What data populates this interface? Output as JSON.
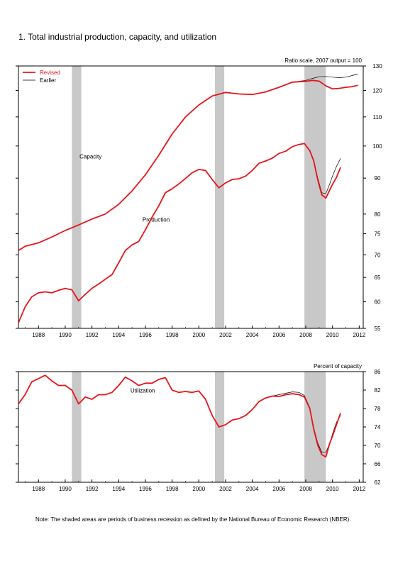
{
  "title": "1. Total industrial production, capacity, and utilization",
  "note": "Note: The shaded areas are periods of business recession as defined by the National Bureau of Economic Research (NBER).",
  "colors": {
    "revised": "#e8141a",
    "earlier": "#000000",
    "recession": "#c8c8c8"
  },
  "chart_data": [
    {
      "type": "line",
      "title": "",
      "xlabel": "",
      "ylabel": "",
      "unit_label": "Ratio scale, 2007 output = 100",
      "y_scale": "log",
      "xlim": [
        1986.5,
        2012.3
      ],
      "ylim": [
        55,
        130
      ],
      "x_ticks": [
        1988,
        1990,
        1992,
        1994,
        1996,
        1998,
        2000,
        2002,
        2004,
        2006,
        2008,
        2010,
        2012
      ],
      "x_tick_labels": [
        "1988",
        "1990",
        "1992",
        "1994",
        "1996",
        "1998",
        "2000",
        "2002",
        "2004",
        "2006",
        "2008",
        "2010",
        "2012"
      ],
      "y_ticks": [
        55,
        60,
        65,
        70,
        75,
        80,
        90,
        100,
        110,
        120,
        130
      ],
      "y_tick_labels": [
        "55",
        "60",
        "65",
        "70",
        "75",
        "80",
        "90",
        "100",
        "110",
        "120",
        "130"
      ],
      "legend": {
        "placement": "top-left",
        "entries": [
          "Revised",
          "Earlier"
        ]
      },
      "recessions": [
        [
          1990.5,
          1991.2
        ],
        [
          2001.2,
          2001.9
        ],
        [
          2007.9,
          2009.5
        ]
      ],
      "annotations": [
        {
          "text": "Capacity",
          "x": 1991.9,
          "y": 96
        },
        {
          "text": "Production",
          "x": 1996.8,
          "y": 78
        }
      ],
      "series": [
        {
          "name": "Capacity (Revised)",
          "style": "revised",
          "x": [
            1986.5,
            1987.0,
            1988.0,
            1989.0,
            1990.0,
            1991.0,
            1992.0,
            1993.0,
            1994.0,
            1995.0,
            1996.0,
            1997.0,
            1998.0,
            1999.0,
            2000.0,
            2001.0,
            2002.0,
            2003.0,
            2004.0,
            2005.0,
            2006.0,
            2007.0,
            2008.0,
            2008.5,
            2009.0,
            2009.5,
            2010.0,
            2010.5,
            2011.0,
            2011.5,
            2011.9
          ],
          "values": [
            71.0,
            72.0,
            72.8,
            74.2,
            75.8,
            77.2,
            78.7,
            80.0,
            82.6,
            86.3,
            91.0,
            97.0,
            104.0,
            110.0,
            114.4,
            117.8,
            119.2,
            118.6,
            118.4,
            119.4,
            121.2,
            123.3,
            123.6,
            124.0,
            123.7,
            121.8,
            120.6,
            120.8,
            121.2,
            121.5,
            122.0
          ]
        },
        {
          "name": "Capacity (Earlier)",
          "style": "earlier",
          "x": [
            2007.0,
            2008.0,
            2008.5,
            2009.0,
            2009.5,
            2010.0,
            2010.5,
            2011.0,
            2011.5,
            2011.9
          ],
          "values": [
            123.3,
            124.0,
            124.8,
            125.5,
            125.6,
            125.3,
            125.1,
            125.3,
            126.0,
            126.6
          ]
        },
        {
          "name": "Production (Revised)",
          "style": "revised",
          "x": [
            1986.5,
            1987.0,
            1987.5,
            1988.0,
            1988.5,
            1989.0,
            1989.5,
            1990.0,
            1990.5,
            1991.0,
            1991.5,
            1992.0,
            1992.5,
            1993.0,
            1993.5,
            1994.0,
            1994.5,
            1995.0,
            1995.5,
            1996.0,
            1996.5,
            1997.0,
            1997.5,
            1998.0,
            1998.5,
            1999.0,
            1999.5,
            2000.0,
            2000.5,
            2001.0,
            2001.5,
            2002.0,
            2002.5,
            2003.0,
            2003.5,
            2004.0,
            2004.5,
            2005.0,
            2005.5,
            2006.0,
            2006.5,
            2007.0,
            2007.5,
            2007.9,
            2008.3,
            2008.6,
            2008.9,
            2009.2,
            2009.5,
            2009.8,
            2010.0,
            2010.3,
            2010.6
          ],
          "values": [
            56.0,
            59.0,
            61.0,
            61.8,
            62.0,
            61.8,
            62.3,
            62.7,
            62.4,
            60.2,
            61.5,
            62.7,
            63.6,
            64.6,
            65.6,
            68.2,
            71.0,
            72.3,
            73.1,
            76.0,
            79.2,
            82.2,
            85.8,
            86.9,
            88.3,
            89.9,
            91.6,
            92.6,
            92.3,
            89.6,
            87.2,
            88.6,
            89.6,
            89.8,
            90.6,
            92.3,
            94.5,
            95.2,
            96.1,
            97.6,
            98.3,
            99.8,
            100.5,
            100.8,
            98.5,
            95.2,
            89.4,
            85.2,
            84.3,
            86.6,
            88.2,
            90.2,
            93.2
          ]
        },
        {
          "name": "Production (Earlier)",
          "style": "earlier",
          "x": [
            2008.3,
            2008.6,
            2008.9,
            2009.2,
            2009.5,
            2009.8,
            2010.0,
            2010.3,
            2010.6
          ],
          "values": [
            98.5,
            95.4,
            90.0,
            85.8,
            85.5,
            88.4,
            90.6,
            93.5,
            96.0
          ]
        }
      ]
    },
    {
      "type": "line",
      "title": "",
      "xlabel": "",
      "ylabel": "",
      "unit_label": "Percent of capacity",
      "xlim": [
        1986.5,
        2012.3
      ],
      "ylim": [
        62,
        86
      ],
      "x_ticks": [
        1988,
        1990,
        1992,
        1994,
        1996,
        1998,
        2000,
        2002,
        2004,
        2006,
        2008,
        2010,
        2012
      ],
      "x_tick_labels": [
        "1988",
        "1990",
        "1992",
        "1994",
        "1996",
        "1998",
        "2000",
        "2002",
        "2004",
        "2006",
        "2008",
        "2010",
        "2012"
      ],
      "y_ticks": [
        62,
        66,
        70,
        74,
        78,
        82,
        86
      ],
      "y_tick_labels": [
        "62",
        "66",
        "70",
        "74",
        "78",
        "82",
        "86"
      ],
      "recessions": [
        [
          1990.5,
          1991.2
        ],
        [
          2001.2,
          2001.9
        ],
        [
          2007.9,
          2009.5
        ]
      ],
      "annotations": [
        {
          "text": "Utilization",
          "x": 1995.8,
          "y": 81.5
        }
      ],
      "series": [
        {
          "name": "Utilization (Revised)",
          "style": "revised",
          "x": [
            1986.5,
            1987.0,
            1987.5,
            1988.0,
            1988.5,
            1989.0,
            1989.5,
            1990.0,
            1990.5,
            1991.0,
            1991.5,
            1992.0,
            1992.5,
            1993.0,
            1993.5,
            1994.0,
            1994.5,
            1995.0,
            1995.5,
            1996.0,
            1996.5,
            1997.0,
            1997.5,
            1998.0,
            1998.5,
            1999.0,
            1999.5,
            2000.0,
            2000.5,
            2001.0,
            2001.5,
            2002.0,
            2002.5,
            2003.0,
            2003.5,
            2004.0,
            2004.5,
            2005.0,
            2005.5,
            2006.0,
            2006.5,
            2007.0,
            2007.5,
            2007.9,
            2008.3,
            2008.6,
            2008.9,
            2009.2,
            2009.5,
            2009.8,
            2010.0,
            2010.3,
            2010.6
          ],
          "values": [
            79.0,
            81.0,
            83.8,
            84.5,
            85.2,
            84.0,
            83.0,
            83.0,
            82.0,
            79.0,
            80.5,
            80.0,
            81.0,
            81.0,
            81.5,
            83.0,
            84.8,
            84.0,
            83.0,
            83.5,
            83.5,
            84.3,
            84.7,
            82.0,
            81.5,
            81.7,
            81.5,
            81.8,
            80.0,
            76.5,
            74.0,
            74.5,
            75.5,
            75.8,
            76.5,
            77.8,
            79.5,
            80.3,
            80.7,
            80.6,
            81.0,
            81.2,
            81.0,
            80.5,
            78.0,
            73.5,
            70.0,
            68.0,
            67.5,
            70.5,
            72.0,
            74.5,
            77.0
          ]
        },
        {
          "name": "Utilization (Earlier)",
          "style": "earlier",
          "x": [
            2005.5,
            2006.0,
            2006.5,
            2007.0,
            2007.5,
            2007.9,
            2008.3,
            2008.6,
            2008.9,
            2009.2,
            2009.5,
            2009.8,
            2010.0,
            2010.3,
            2010.6
          ],
          "values": [
            80.7,
            81.0,
            81.3,
            81.6,
            81.5,
            80.8,
            78.2,
            73.8,
            70.5,
            68.5,
            68.5,
            70.5,
            72.5,
            75.0,
            76.5
          ]
        }
      ]
    }
  ]
}
